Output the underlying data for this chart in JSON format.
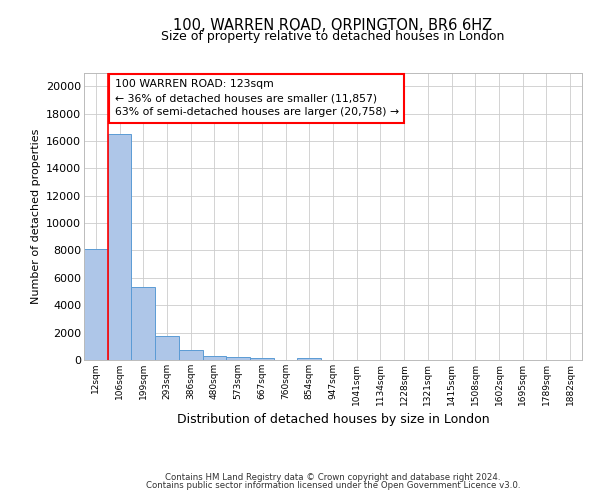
{
  "title_line1": "100, WARREN ROAD, ORPINGTON, BR6 6HZ",
  "title_line2": "Size of property relative to detached houses in London",
  "xlabel": "Distribution of detached houses by size in London",
  "ylabel": "Number of detached properties",
  "categories": [
    "12sqm",
    "106sqm",
    "199sqm",
    "293sqm",
    "386sqm",
    "480sqm",
    "573sqm",
    "667sqm",
    "760sqm",
    "854sqm",
    "947sqm",
    "1041sqm",
    "1134sqm",
    "1228sqm",
    "1321sqm",
    "1415sqm",
    "1508sqm",
    "1602sqm",
    "1695sqm",
    "1789sqm",
    "1882sqm"
  ],
  "values": [
    8100,
    16500,
    5300,
    1750,
    700,
    300,
    200,
    170,
    0,
    170,
    0,
    0,
    0,
    0,
    0,
    0,
    0,
    0,
    0,
    0,
    0
  ],
  "bar_color": "#aec6e8",
  "bar_edge_color": "#5b9bd5",
  "annotation_text": "100 WARREN ROAD: 123sqm\n← 36% of detached houses are smaller (11,857)\n63% of semi-detached houses are larger (20,758) →",
  "annotation_box_edge_color": "red",
  "vline_x": 0.5,
  "vline_color": "red",
  "grid_color": "#cccccc",
  "ylim": [
    0,
    21000
  ],
  "yticks": [
    0,
    2000,
    4000,
    6000,
    8000,
    10000,
    12000,
    14000,
    16000,
    18000,
    20000
  ],
  "footer_line1": "Contains HM Land Registry data © Crown copyright and database right 2024.",
  "footer_line2": "Contains public sector information licensed under the Open Government Licence v3.0."
}
